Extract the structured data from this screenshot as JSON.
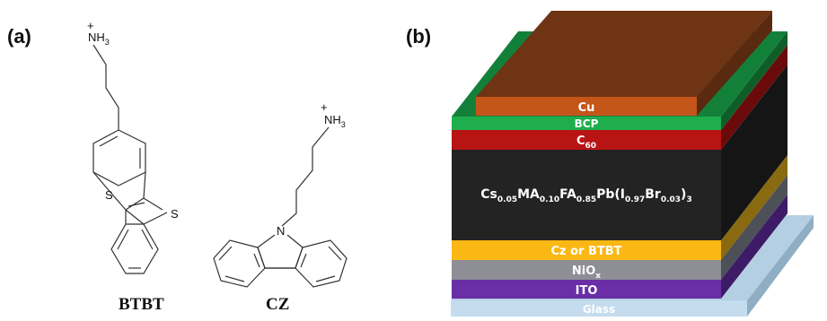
{
  "panels": {
    "a": "(a)",
    "b": "(b)"
  },
  "molecules": {
    "btbt": {
      "name": "BTBT",
      "amine": "NH",
      "amine_sub": "3",
      "charge": "+",
      "heteroatoms": [
        "S",
        "S"
      ]
    },
    "cz": {
      "name": "CZ",
      "amine": "NH",
      "amine_sub": "3",
      "charge": "+",
      "heteroatom": "N"
    }
  },
  "stack": {
    "layers": [
      {
        "key": "cu",
        "label": "Cu",
        "color": "#C4561A"
      },
      {
        "key": "bcp",
        "label": "BCP",
        "color": "#1FAE4E"
      },
      {
        "key": "c60",
        "label": "C",
        "sub": "60",
        "color": "#B81414"
      },
      {
        "key": "perovskite",
        "color": "#232323",
        "formula": [
          {
            "t": "Cs"
          },
          {
            "s": "0.05"
          },
          {
            "t": "MA"
          },
          {
            "s": "0.10"
          },
          {
            "t": "FA"
          },
          {
            "s": "0.85"
          },
          {
            "t": "Pb(I"
          },
          {
            "s": "0.97"
          },
          {
            "t": "Br"
          },
          {
            "s": "0.03"
          },
          {
            "t": ")"
          },
          {
            "s": "3"
          }
        ]
      },
      {
        "key": "htl",
        "label": "Cz or BTBT",
        "color": "#FBB814"
      },
      {
        "key": "nio",
        "label": "NiO",
        "sub": "x",
        "color": "#8E8E96"
      },
      {
        "key": "ito",
        "label": "ITO",
        "color": "#6A2EA6"
      },
      {
        "key": "glass",
        "label": "Glass",
        "color": "#C4DCEE"
      }
    ]
  }
}
